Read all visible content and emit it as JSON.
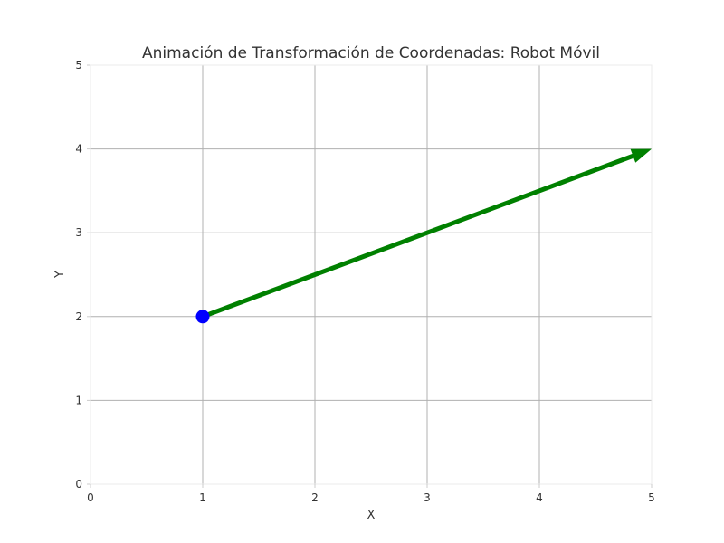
{
  "chart_data": {
    "type": "scatter",
    "title": "Animación de Transformación de Coordenadas: Robot Móvil",
    "xlabel": "X",
    "ylabel": "Y",
    "xlim": [
      0,
      5
    ],
    "ylim": [
      0,
      5
    ],
    "xticks": [
      "0",
      "1",
      "2",
      "3",
      "4",
      "5"
    ],
    "yticks": [
      "0",
      "1",
      "2",
      "3",
      "4",
      "5"
    ],
    "grid": true,
    "point": {
      "x": 1,
      "y": 2,
      "color": "#0000ff"
    },
    "arrow": {
      "x0": 1,
      "y0": 2,
      "x1": 5,
      "y1": 4,
      "color": "#008000"
    }
  }
}
